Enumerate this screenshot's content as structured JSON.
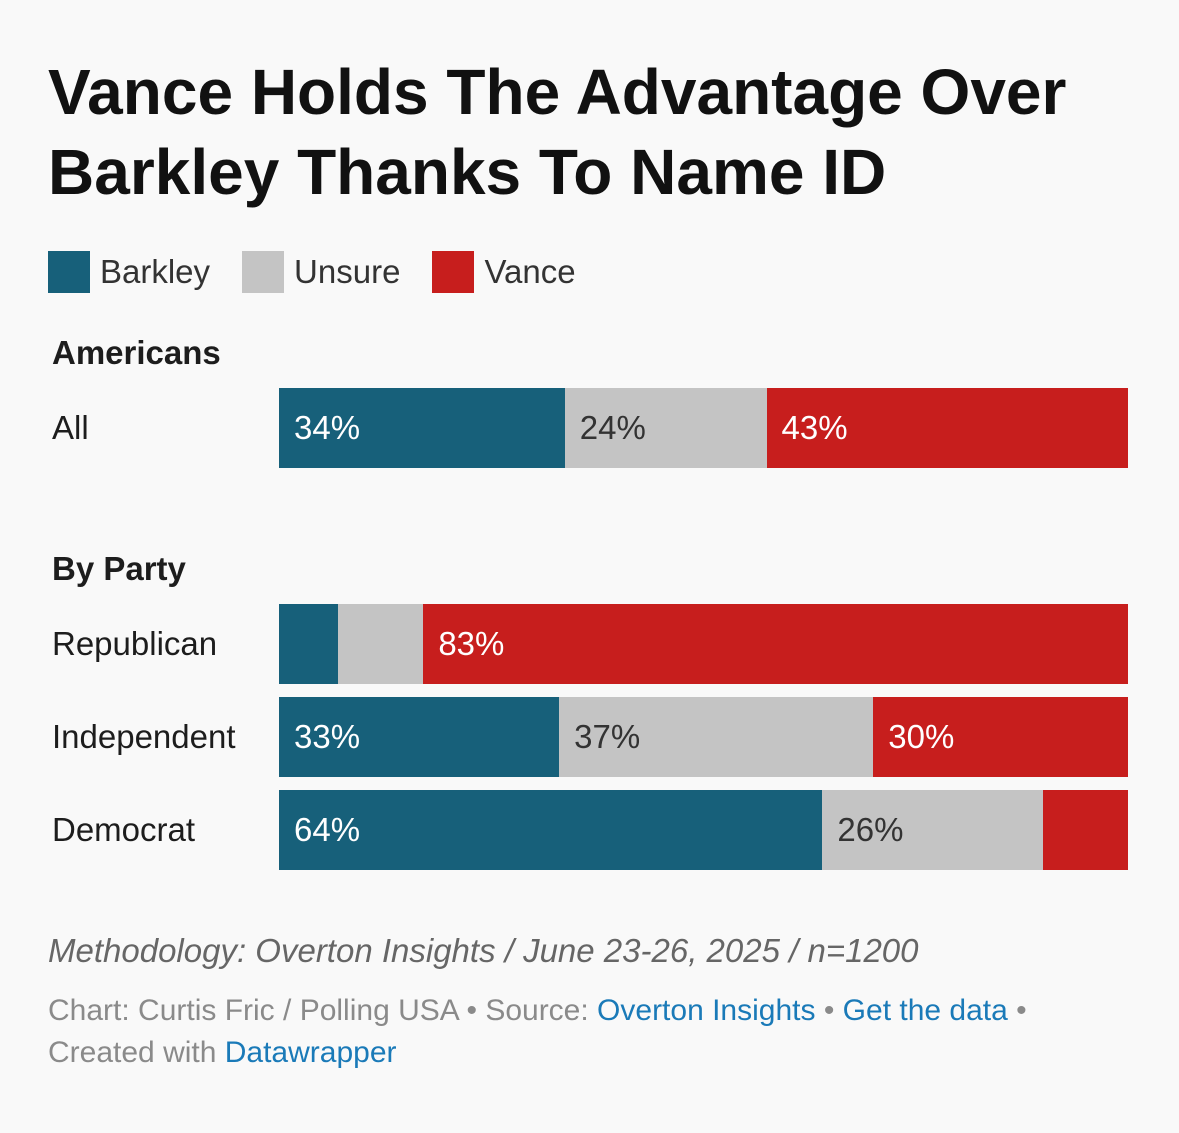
{
  "title": "Vance Holds The Advantage Over Barkley Thanks To Name ID",
  "colors": {
    "Barkley": "#17607a",
    "Unsure": "#c4c4c4",
    "Vance": "#c71e1d"
  },
  "legend": [
    {
      "name": "Barkley",
      "color": "#17607a"
    },
    {
      "name": "Unsure",
      "color": "#c4c4c4"
    },
    {
      "name": "Vance",
      "color": "#c71e1d"
    }
  ],
  "chart_data": {
    "type": "bar",
    "stacked": true,
    "orientation": "horizontal",
    "normalized_to_100": true,
    "title": "Vance Holds The Advantage Over Barkley Thanks To Name ID",
    "series_names": [
      "Barkley",
      "Unsure",
      "Vance"
    ],
    "groups": [
      {
        "title": "Americans",
        "rows": [
          {
            "label": "All",
            "values": [
              34,
              24,
              43
            ],
            "labels": [
              "34%",
              "24%",
              "43%"
            ]
          }
        ]
      },
      {
        "title": "By Party",
        "rows": [
          {
            "label": "Republican",
            "values": [
              7,
              10,
              83
            ],
            "labels": [
              "",
              "",
              "83%"
            ]
          },
          {
            "label": "Independent",
            "values": [
              33,
              37,
              30
            ],
            "labels": [
              "33%",
              "37%",
              "30%"
            ]
          },
          {
            "label": "Democrat",
            "values": [
              64,
              26,
              10
            ],
            "labels": [
              "64%",
              "26%",
              ""
            ]
          }
        ]
      }
    ],
    "legend_position": "top-left",
    "grid": false
  },
  "footer": {
    "methodology": "Methodology: Overton Insights / June 23-26, 2025 / n=1200",
    "chart_credit": "Chart: Curtis Fric / Polling USA",
    "separator": " • ",
    "source_label": "Source: ",
    "source_link": "Overton Insights",
    "get_data": "Get the data",
    "created_with": "Created with ",
    "datawrapper": "Datawrapper"
  }
}
